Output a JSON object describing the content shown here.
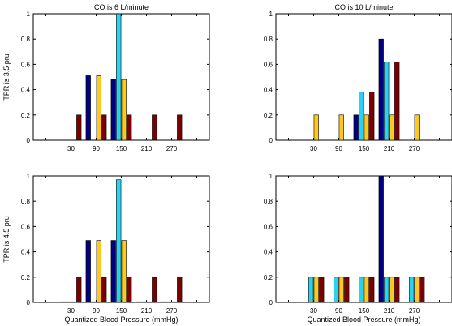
{
  "chart_data": [
    {
      "type": "bar",
      "title": "CO is 6 L/minute",
      "ylabel": "TPR is 3.5 pru",
      "xlabel": "",
      "ylim": [
        0,
        1
      ],
      "yticks": [
        "0",
        "0.2",
        "0.4",
        "0.6",
        "0.8",
        "1"
      ],
      "categories": [
        "",
        "30",
        "90",
        "150",
        "210",
        "270",
        ""
      ],
      "series": [
        {
          "color": "#000080",
          "values": [
            0,
            0,
            0.51,
            0.48,
            0,
            0,
            0
          ]
        },
        {
          "color": "#28d2f0",
          "values": [
            0,
            0,
            0,
            1.0,
            0,
            0,
            0
          ]
        },
        {
          "color": "#ffc81e",
          "values": [
            0,
            0,
            0.51,
            0.48,
            0,
            0,
            0
          ]
        },
        {
          "color": "#7d0000",
          "values": [
            0,
            0.2,
            0.2,
            0.2,
            0.2,
            0.2,
            0
          ]
        }
      ]
    },
    {
      "type": "bar",
      "title": "CO is 10 L/minute",
      "ylabel": "",
      "xlabel": "",
      "ylim": [
        0,
        1
      ],
      "yticks": [
        "0",
        "0.2",
        "0.4",
        "0.6",
        "0.8",
        "1"
      ],
      "categories": [
        "",
        "30",
        "90",
        "150",
        "210",
        "270",
        ""
      ],
      "series": [
        {
          "color": "#000080",
          "values": [
            0,
            0,
            0,
            0.2,
            0.8,
            0,
            0
          ]
        },
        {
          "color": "#28d2f0",
          "values": [
            0,
            0,
            0,
            0.38,
            0.62,
            0,
            0
          ]
        },
        {
          "color": "#ffc81e",
          "values": [
            0,
            0.2,
            0.2,
            0.2,
            0.2,
            0.2,
            0
          ]
        },
        {
          "color": "#7d0000",
          "values": [
            0,
            0,
            0,
            0.38,
            0.62,
            0,
            0
          ]
        }
      ]
    },
    {
      "type": "bar",
      "title": "",
      "ylabel": "TPR is 4.5 pru",
      "xlabel": "Quantized Blood Pressure (mmHg)",
      "ylim": [
        0,
        1
      ],
      "yticks": [
        "0",
        "0.2",
        "0.4",
        "0.6",
        "0.8",
        "1"
      ],
      "categories": [
        "",
        "30",
        "90",
        "150",
        "210",
        "270",
        ""
      ],
      "series": [
        {
          "color": "#000080",
          "values": [
            0,
            0.005,
            0.49,
            0.49,
            0.005,
            0.005,
            0
          ]
        },
        {
          "color": "#28d2f0",
          "values": [
            0,
            0.005,
            0.005,
            0.97,
            0.005,
            0.005,
            0
          ]
        },
        {
          "color": "#ffc81e",
          "values": [
            0,
            0.005,
            0.49,
            0.49,
            0.005,
            0.005,
            0
          ]
        },
        {
          "color": "#7d0000",
          "values": [
            0,
            0.2,
            0.2,
            0.2,
            0.2,
            0.2,
            0
          ]
        }
      ]
    },
    {
      "type": "bar",
      "title": "",
      "ylabel": "",
      "xlabel": "Quantized Blood Pressure (mmHg)",
      "ylim": [
        0,
        1
      ],
      "yticks": [
        "0",
        "0.2",
        "0.4",
        "0.6",
        "0.8",
        "1"
      ],
      "categories": [
        "",
        "30",
        "90",
        "150",
        "210",
        "270",
        ""
      ],
      "series": [
        {
          "color": "#000080",
          "values": [
            0,
            0,
            0,
            0,
            1.0,
            0,
            0
          ]
        },
        {
          "color": "#28d2f0",
          "values": [
            0,
            0.2,
            0.2,
            0.2,
            0.2,
            0.2,
            0
          ]
        },
        {
          "color": "#ffc81e",
          "values": [
            0,
            0.2,
            0.2,
            0.2,
            0.2,
            0.2,
            0
          ]
        },
        {
          "color": "#7d0000",
          "values": [
            0,
            0.2,
            0.2,
            0.2,
            0.2,
            0.2,
            0
          ]
        }
      ]
    }
  ]
}
